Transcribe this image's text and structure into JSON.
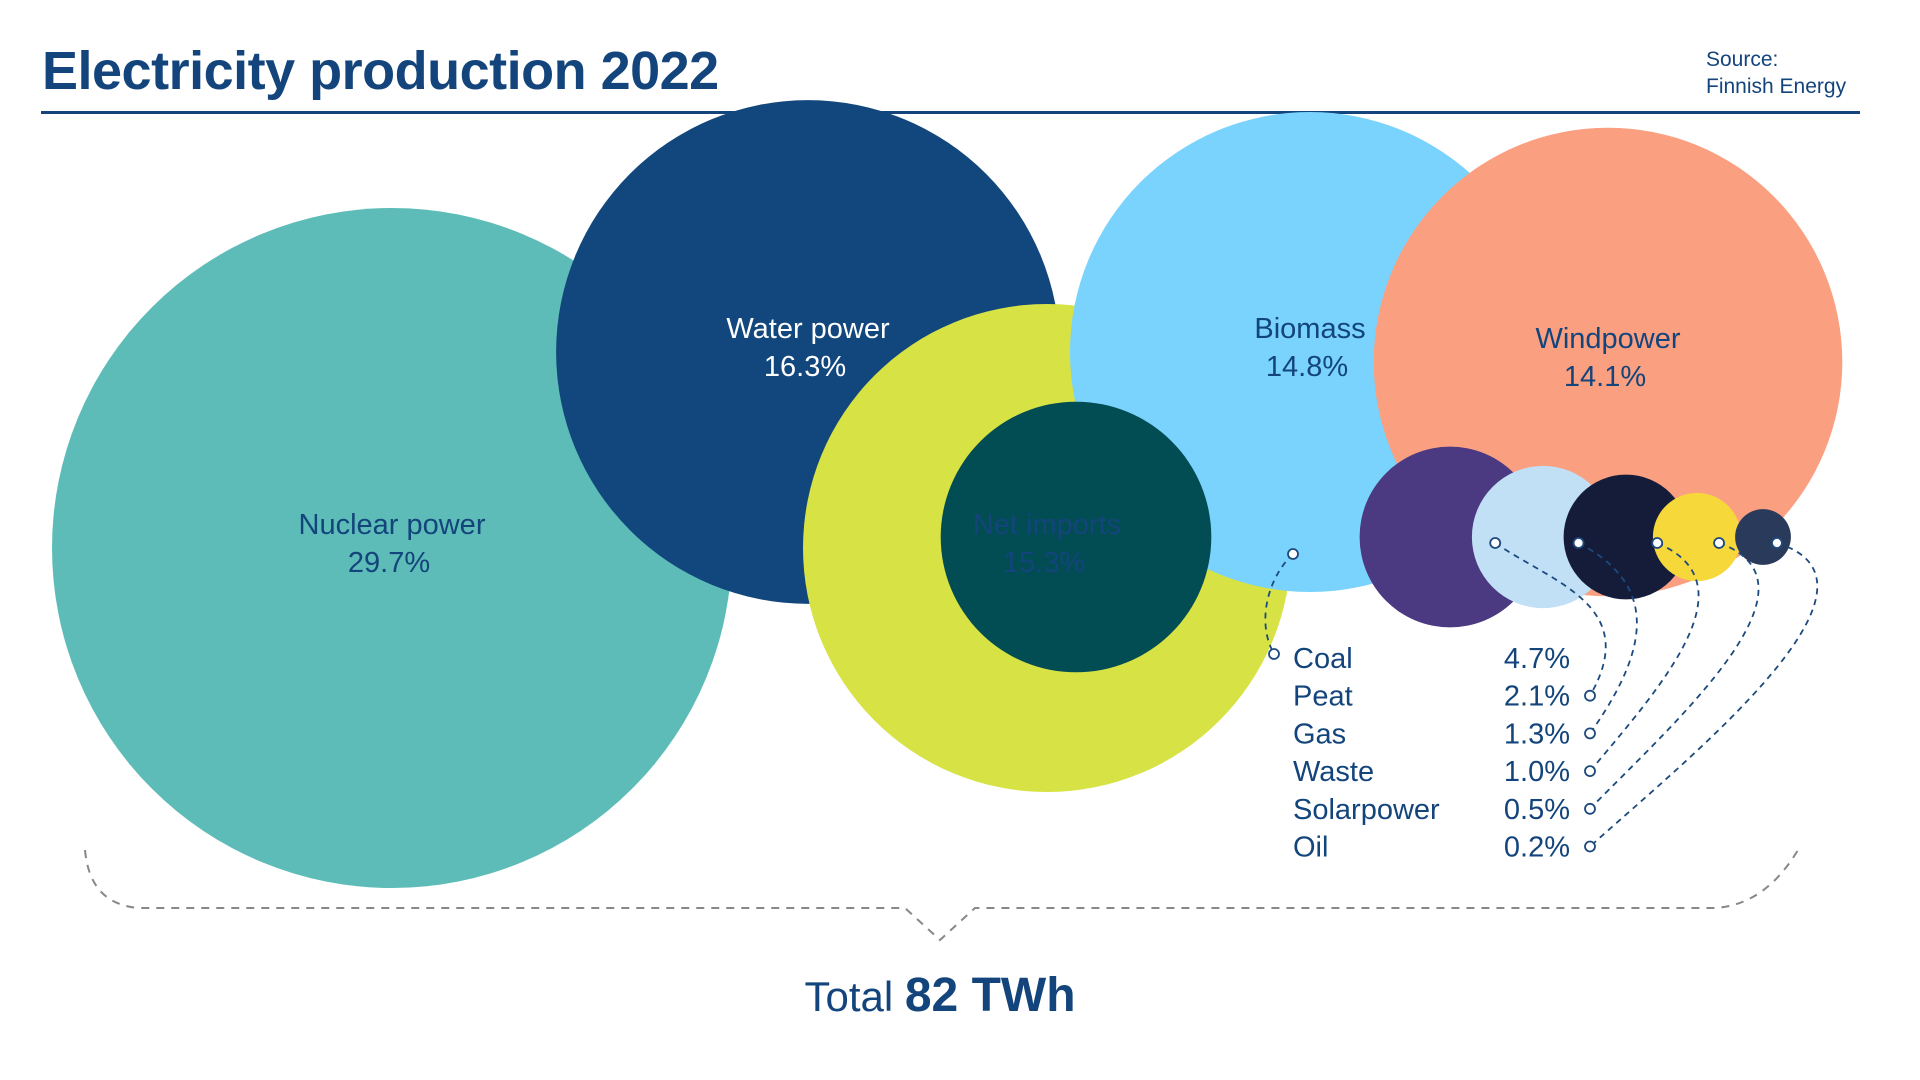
{
  "title": "Electricity production 2022",
  "source": {
    "line1": "Source:",
    "line2": "Finnish Energy"
  },
  "total": {
    "prefix": "Total",
    "value": "82 TWh"
  },
  "chart_data": {
    "type": "bubble",
    "unit": "%",
    "series": [
      {
        "name": "Nuclear power",
        "label": "29.7%",
        "value": 29.7,
        "color": "#5dbcb7",
        "text_color": "#13457c"
      },
      {
        "name": "Water power",
        "label": "16.3%",
        "value": 16.3,
        "color": "#12477d",
        "text_color": "#ffffff"
      },
      {
        "name": "Net imports",
        "label": "15.3%",
        "value": 15.3,
        "color": "#d7e245",
        "text_color": "#13457c"
      },
      {
        "name": "Biomass",
        "label": "14.8%",
        "value": 14.8,
        "color": "#7ad3fd",
        "text_color": "#13457c"
      },
      {
        "name": "Windpower",
        "label": "14.1%",
        "value": 14.1,
        "color": "#fb9f81",
        "text_color": "#13457c"
      },
      {
        "name": "Coal",
        "label": "4.7%",
        "value": 4.7,
        "color": "#024c53"
      },
      {
        "name": "Peat",
        "label": "2.1%",
        "value": 2.1,
        "color": "#4b3a82"
      },
      {
        "name": "Gas",
        "label": "1.3%",
        "value": 1.3,
        "color": "#c1dff5"
      },
      {
        "name": "Waste",
        "label": "1.0%",
        "value": 1.0,
        "color": "#141c3a"
      },
      {
        "name": "Solarpower",
        "label": "0.5%",
        "value": 0.5,
        "color": "#f6d83a"
      },
      {
        "name": "Oil",
        "label": "0.2%",
        "value": 0.2,
        "color": "#2a3a5a"
      }
    ]
  }
}
